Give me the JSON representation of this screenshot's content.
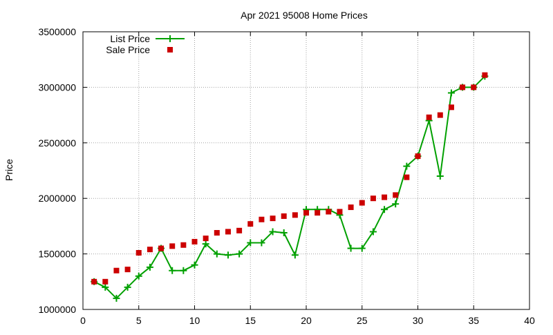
{
  "chart_data": {
    "type": "line",
    "title": "Apr 2021 95008 Home Prices",
    "xlabel": "",
    "ylabel": "Price",
    "xlim": [
      0,
      40
    ],
    "ylim": [
      1000000,
      3500000
    ],
    "x_ticks": [
      0,
      5,
      10,
      15,
      20,
      25,
      30,
      35,
      40
    ],
    "y_ticks": [
      1000000,
      1500000,
      2000000,
      2500000,
      3000000,
      3500000
    ],
    "grid": true,
    "legend_position": "top-left",
    "series": [
      {
        "name": "List Price",
        "style": "line+cross",
        "color": "#00a000",
        "points": [
          [
            1,
            1250000
          ],
          [
            2,
            1200000
          ],
          [
            3,
            1100000
          ],
          [
            4,
            1200000
          ],
          [
            5,
            1300000
          ],
          [
            6,
            1380000
          ],
          [
            7,
            1550000
          ],
          [
            8,
            1350000
          ],
          [
            9,
            1350000
          ],
          [
            10,
            1400000
          ],
          [
            11,
            1590000
          ],
          [
            12,
            1500000
          ],
          [
            13,
            1490000
          ],
          [
            14,
            1500000
          ],
          [
            15,
            1600000
          ],
          [
            16,
            1600000
          ],
          [
            17,
            1700000
          ],
          [
            18,
            1690000
          ],
          [
            19,
            1490000
          ],
          [
            20,
            1900000
          ],
          [
            21,
            1900000
          ],
          [
            22,
            1900000
          ],
          [
            23,
            1850000
          ],
          [
            24,
            1550000
          ],
          [
            25,
            1550000
          ],
          [
            26,
            1700000
          ],
          [
            27,
            1900000
          ],
          [
            28,
            1950000
          ],
          [
            29,
            2290000
          ],
          [
            30,
            2380000
          ],
          [
            31,
            2700000
          ],
          [
            32,
            2200000
          ],
          [
            33,
            2950000
          ],
          [
            34,
            3000000
          ],
          [
            35,
            3000000
          ],
          [
            36,
            3100000
          ]
        ]
      },
      {
        "name": "Sale Price",
        "style": "square",
        "color": "#cc0000",
        "points": [
          [
            1,
            1250000
          ],
          [
            2,
            1250000
          ],
          [
            3,
            1350000
          ],
          [
            4,
            1360000
          ],
          [
            5,
            1510000
          ],
          [
            6,
            1540000
          ],
          [
            7,
            1550000
          ],
          [
            8,
            1570000
          ],
          [
            9,
            1580000
          ],
          [
            10,
            1610000
          ],
          [
            11,
            1640000
          ],
          [
            12,
            1690000
          ],
          [
            13,
            1700000
          ],
          [
            14,
            1710000
          ],
          [
            15,
            1770000
          ],
          [
            16,
            1810000
          ],
          [
            17,
            1820000
          ],
          [
            18,
            1840000
          ],
          [
            19,
            1850000
          ],
          [
            20,
            1870000
          ],
          [
            21,
            1870000
          ],
          [
            22,
            1880000
          ],
          [
            23,
            1880000
          ],
          [
            24,
            1920000
          ],
          [
            25,
            1960000
          ],
          [
            26,
            2000000
          ],
          [
            27,
            2010000
          ],
          [
            28,
            2030000
          ],
          [
            29,
            2190000
          ],
          [
            30,
            2380000
          ],
          [
            31,
            2730000
          ],
          [
            32,
            2750000
          ],
          [
            33,
            2820000
          ],
          [
            34,
            3000000
          ],
          [
            35,
            3000000
          ],
          [
            36,
            3110000
          ]
        ]
      }
    ]
  }
}
